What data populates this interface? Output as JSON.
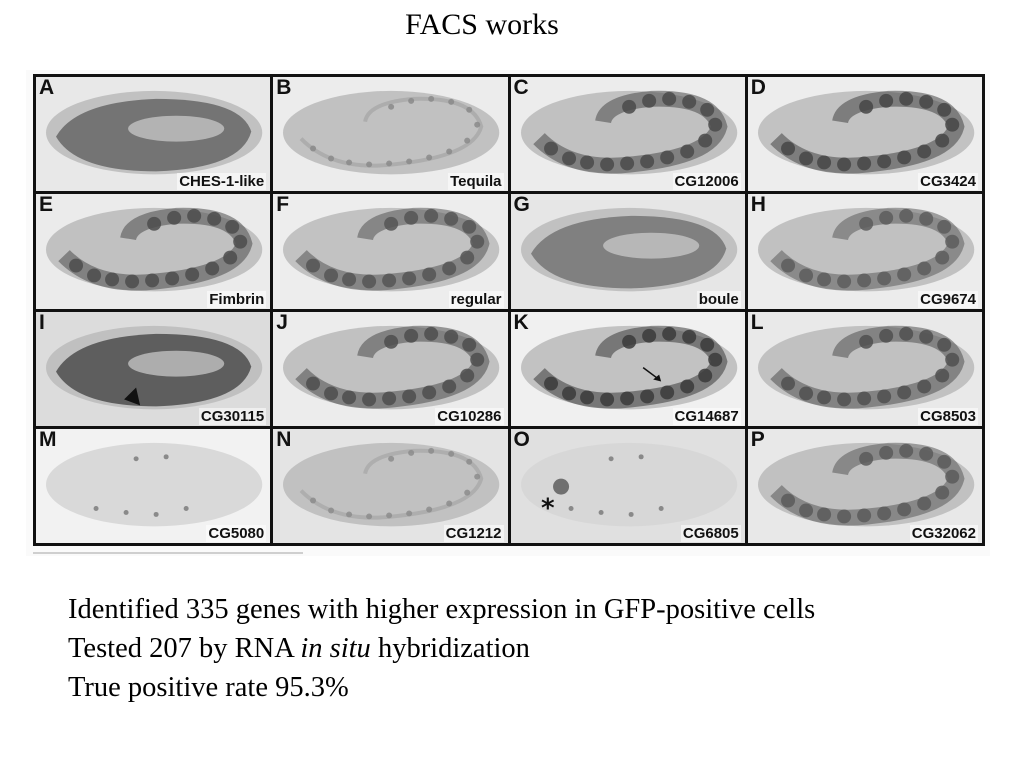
{
  "slide": {
    "title": "FACS works"
  },
  "figure": {
    "panels": [
      {
        "letter": "A",
        "gene": "CHES-1-like",
        "tone": "#5a5a5a",
        "bg": "#e8e8e8",
        "style": "solid"
      },
      {
        "letter": "B",
        "gene": "Tequila",
        "tone": "#8a8a8a",
        "bg": "#ececec",
        "style": "dots"
      },
      {
        "letter": "C",
        "gene": "CG12006",
        "tone": "#4a4a4a",
        "bg": "#ececec",
        "style": "segments"
      },
      {
        "letter": "D",
        "gene": "CG3424",
        "tone": "#454545",
        "bg": "#ededed",
        "style": "segments"
      },
      {
        "letter": "E",
        "gene": "Fimbrin",
        "tone": "#4c4c4c",
        "bg": "#ebebeb",
        "style": "segments"
      },
      {
        "letter": "F",
        "gene": "regular",
        "tone": "#555555",
        "bg": "#ededed",
        "style": "segments"
      },
      {
        "letter": "G",
        "gene": "boule",
        "tone": "#6a6a6a",
        "bg": "#e6e6e6",
        "style": "solid"
      },
      {
        "letter": "H",
        "gene": "CG9674",
        "tone": "#5c5c5c",
        "bg": "#ececec",
        "style": "segments"
      },
      {
        "letter": "I",
        "gene": "CG30115",
        "tone": "#3e3e3e",
        "bg": "#dcdcdc",
        "style": "solid"
      },
      {
        "letter": "J",
        "gene": "CG10286",
        "tone": "#4d4d4d",
        "bg": "#ececec",
        "style": "segments"
      },
      {
        "letter": "K",
        "gene": "CG14687",
        "tone": "#3a3a3a",
        "bg": "#f0f0f0",
        "style": "segments"
      },
      {
        "letter": "L",
        "gene": "CG8503",
        "tone": "#505050",
        "bg": "#e9e9e9",
        "style": "segments"
      },
      {
        "letter": "M",
        "gene": "CG5080",
        "tone": "#9a9a9a",
        "bg": "#f2f2f2",
        "style": "faint"
      },
      {
        "letter": "N",
        "gene": "CG1212",
        "tone": "#8c8c8c",
        "bg": "#e4e4e4",
        "style": "dots"
      },
      {
        "letter": "O",
        "gene": "CG6805",
        "tone": "#c8c8c8",
        "bg": "#e0e0e0",
        "style": "faint"
      },
      {
        "letter": "P",
        "gene": "CG32062",
        "tone": "#5a5a5a",
        "bg": "#e8e8e8",
        "style": "segments"
      }
    ]
  },
  "bullets": {
    "line1": "Identified 335 genes with higher expression in GFP-positive cells",
    "line2_pre": "Tested 207 by RNA ",
    "line2_em": "in situ",
    "line2_post": " hybridization",
    "line3": "True positive rate 95.3%"
  }
}
